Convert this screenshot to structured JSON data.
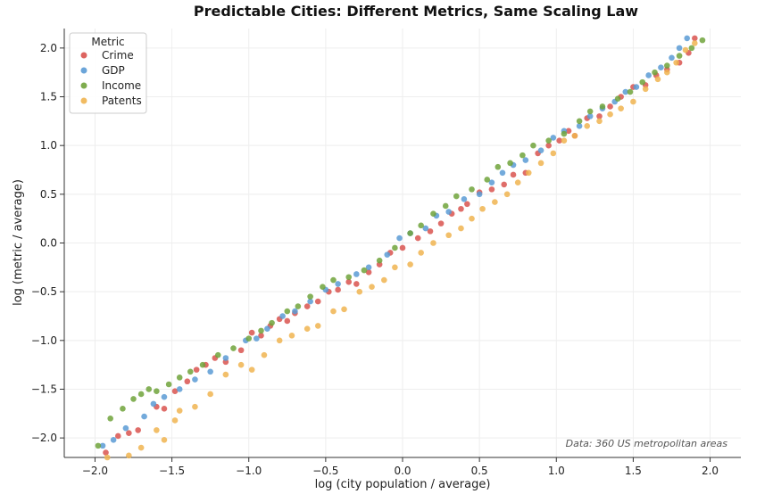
{
  "chart_data": {
    "type": "scatter",
    "title": "Predictable Cities: Different Metrics, Same Scaling Law",
    "xlabel": "log (city population / average)",
    "ylabel": "log (metric / average)",
    "xlim": [
      -2.2,
      2.2
    ],
    "ylim": [
      -2.2,
      2.2
    ],
    "x_ticks": [
      -2.0,
      -1.5,
      -1.0,
      -0.5,
      0.0,
      0.5,
      1.0,
      1.5,
      2.0
    ],
    "y_ticks": [
      -2.0,
      -1.5,
      -1.0,
      -0.5,
      0.0,
      0.5,
      1.0,
      1.5,
      2.0
    ],
    "x_tick_labels": [
      "−2.0",
      "−1.5",
      "−1.0",
      "−0.5",
      "0.0",
      "0.5",
      "1.0",
      "1.5",
      "2.0"
    ],
    "y_tick_labels": [
      "−2.0",
      "−1.5",
      "−1.0",
      "−0.5",
      "0.0",
      "0.5",
      "1.0",
      "1.5",
      "2.0"
    ],
    "grid": true,
    "legend_title": "Metric",
    "legend_position": "top-left",
    "annotation": "Data: 360 US metropolitan areas",
    "series": [
      {
        "name": "Crime",
        "color": "#d9534f",
        "points": [
          [
            -1.93,
            -2.15
          ],
          [
            -1.85,
            -1.98
          ],
          [
            -1.78,
            -1.95
          ],
          [
            -1.72,
            -1.92
          ],
          [
            -1.6,
            -1.68
          ],
          [
            -1.55,
            -1.7
          ],
          [
            -1.48,
            -1.52
          ],
          [
            -1.4,
            -1.42
          ],
          [
            -1.34,
            -1.3
          ],
          [
            -1.28,
            -1.25
          ],
          [
            -1.22,
            -1.18
          ],
          [
            -1.15,
            -1.22
          ],
          [
            -1.05,
            -1.1
          ],
          [
            -0.98,
            -0.92
          ],
          [
            -0.92,
            -0.95
          ],
          [
            -0.86,
            -0.85
          ],
          [
            -0.8,
            -0.78
          ],
          [
            -0.75,
            -0.8
          ],
          [
            -0.7,
            -0.72
          ],
          [
            -0.62,
            -0.65
          ],
          [
            -0.55,
            -0.6
          ],
          [
            -0.48,
            -0.5
          ],
          [
            -0.42,
            -0.48
          ],
          [
            -0.35,
            -0.4
          ],
          [
            -0.3,
            -0.42
          ],
          [
            -0.22,
            -0.3
          ],
          [
            -0.15,
            -0.22
          ],
          [
            -0.08,
            -0.1
          ],
          [
            0.0,
            -0.05
          ],
          [
            0.1,
            0.05
          ],
          [
            0.18,
            0.12
          ],
          [
            0.25,
            0.2
          ],
          [
            0.32,
            0.3
          ],
          [
            0.38,
            0.35
          ],
          [
            0.42,
            0.4
          ],
          [
            0.5,
            0.52
          ],
          [
            0.58,
            0.55
          ],
          [
            0.66,
            0.6
          ],
          [
            0.72,
            0.7
          ],
          [
            0.8,
            0.72
          ],
          [
            0.88,
            0.92
          ],
          [
            0.95,
            1.0
          ],
          [
            1.02,
            1.05
          ],
          [
            1.08,
            1.15
          ],
          [
            1.12,
            1.1
          ],
          [
            1.2,
            1.28
          ],
          [
            1.28,
            1.3
          ],
          [
            1.35,
            1.4
          ],
          [
            1.42,
            1.5
          ],
          [
            1.5,
            1.6
          ],
          [
            1.58,
            1.62
          ],
          [
            1.65,
            1.72
          ],
          [
            1.72,
            1.78
          ],
          [
            1.8,
            1.85
          ],
          [
            1.86,
            1.95
          ],
          [
            1.9,
            2.1
          ]
        ]
      },
      {
        "name": "GDP",
        "color": "#5b9bd5",
        "points": [
          [
            -1.95,
            -2.08
          ],
          [
            -1.88,
            -2.02
          ],
          [
            -1.8,
            -1.9
          ],
          [
            -1.68,
            -1.78
          ],
          [
            -1.62,
            -1.65
          ],
          [
            -1.55,
            -1.58
          ],
          [
            -1.45,
            -1.5
          ],
          [
            -1.35,
            -1.4
          ],
          [
            -1.25,
            -1.32
          ],
          [
            -1.15,
            -1.18
          ],
          [
            -1.02,
            -1.0
          ],
          [
            -0.95,
            -0.98
          ],
          [
            -0.88,
            -0.88
          ],
          [
            -0.78,
            -0.75
          ],
          [
            -0.7,
            -0.7
          ],
          [
            -0.6,
            -0.6
          ],
          [
            -0.5,
            -0.48
          ],
          [
            -0.42,
            -0.42
          ],
          [
            -0.3,
            -0.32
          ],
          [
            -0.22,
            -0.25
          ],
          [
            -0.1,
            -0.12
          ],
          [
            -0.02,
            0.05
          ],
          [
            0.05,
            0.1
          ],
          [
            0.15,
            0.15
          ],
          [
            0.22,
            0.28
          ],
          [
            0.3,
            0.32
          ],
          [
            0.4,
            0.45
          ],
          [
            0.5,
            0.5
          ],
          [
            0.58,
            0.62
          ],
          [
            0.65,
            0.72
          ],
          [
            0.72,
            0.8
          ],
          [
            0.8,
            0.85
          ],
          [
            0.9,
            0.95
          ],
          [
            0.98,
            1.08
          ],
          [
            1.05,
            1.15
          ],
          [
            1.15,
            1.2
          ],
          [
            1.22,
            1.3
          ],
          [
            1.3,
            1.38
          ],
          [
            1.38,
            1.45
          ],
          [
            1.45,
            1.55
          ],
          [
            1.52,
            1.6
          ],
          [
            1.6,
            1.72
          ],
          [
            1.68,
            1.8
          ],
          [
            1.75,
            1.9
          ],
          [
            1.8,
            2.0
          ],
          [
            1.85,
            2.1
          ]
        ]
      },
      {
        "name": "Income",
        "color": "#70a33b",
        "points": [
          [
            -1.98,
            -2.08
          ],
          [
            -1.9,
            -1.8
          ],
          [
            -1.82,
            -1.7
          ],
          [
            -1.75,
            -1.6
          ],
          [
            -1.7,
            -1.55
          ],
          [
            -1.65,
            -1.5
          ],
          [
            -1.6,
            -1.52
          ],
          [
            -1.52,
            -1.45
          ],
          [
            -1.45,
            -1.38
          ],
          [
            -1.38,
            -1.32
          ],
          [
            -1.3,
            -1.25
          ],
          [
            -1.2,
            -1.15
          ],
          [
            -1.1,
            -1.08
          ],
          [
            -1.0,
            -0.98
          ],
          [
            -0.92,
            -0.9
          ],
          [
            -0.85,
            -0.82
          ],
          [
            -0.75,
            -0.7
          ],
          [
            -0.68,
            -0.65
          ],
          [
            -0.6,
            -0.55
          ],
          [
            -0.52,
            -0.45
          ],
          [
            -0.45,
            -0.38
          ],
          [
            -0.35,
            -0.35
          ],
          [
            -0.25,
            -0.28
          ],
          [
            -0.15,
            -0.18
          ],
          [
            -0.05,
            -0.05
          ],
          [
            0.05,
            0.1
          ],
          [
            0.12,
            0.18
          ],
          [
            0.2,
            0.3
          ],
          [
            0.28,
            0.38
          ],
          [
            0.35,
            0.48
          ],
          [
            0.45,
            0.55
          ],
          [
            0.55,
            0.65
          ],
          [
            0.62,
            0.78
          ],
          [
            0.7,
            0.82
          ],
          [
            0.78,
            0.9
          ],
          [
            0.85,
            1.0
          ],
          [
            0.95,
            1.05
          ],
          [
            1.05,
            1.12
          ],
          [
            1.15,
            1.25
          ],
          [
            1.22,
            1.35
          ],
          [
            1.3,
            1.4
          ],
          [
            1.4,
            1.48
          ],
          [
            1.48,
            1.55
          ],
          [
            1.56,
            1.65
          ],
          [
            1.64,
            1.75
          ],
          [
            1.72,
            1.82
          ],
          [
            1.8,
            1.92
          ],
          [
            1.88,
            2.0
          ],
          [
            1.95,
            2.08
          ]
        ]
      },
      {
        "name": "Patents",
        "color": "#f0b450",
        "points": [
          [
            -1.92,
            -2.2
          ],
          [
            -1.78,
            -2.18
          ],
          [
            -1.7,
            -2.1
          ],
          [
            -1.6,
            -1.92
          ],
          [
            -1.55,
            -2.02
          ],
          [
            -1.48,
            -1.82
          ],
          [
            -1.45,
            -1.72
          ],
          [
            -1.35,
            -1.68
          ],
          [
            -1.25,
            -1.55
          ],
          [
            -1.15,
            -1.35
          ],
          [
            -1.05,
            -1.25
          ],
          [
            -0.98,
            -1.3
          ],
          [
            -0.9,
            -1.15
          ],
          [
            -0.8,
            -1.0
          ],
          [
            -0.72,
            -0.95
          ],
          [
            -0.62,
            -0.88
          ],
          [
            -0.55,
            -0.85
          ],
          [
            -0.45,
            -0.7
          ],
          [
            -0.38,
            -0.68
          ],
          [
            -0.28,
            -0.5
          ],
          [
            -0.2,
            -0.45
          ],
          [
            -0.12,
            -0.38
          ],
          [
            -0.05,
            -0.25
          ],
          [
            0.05,
            -0.22
          ],
          [
            0.12,
            -0.1
          ],
          [
            0.2,
            0.0
          ],
          [
            0.3,
            0.08
          ],
          [
            0.38,
            0.15
          ],
          [
            0.45,
            0.25
          ],
          [
            0.52,
            0.35
          ],
          [
            0.6,
            0.42
          ],
          [
            0.68,
            0.5
          ],
          [
            0.75,
            0.62
          ],
          [
            0.82,
            0.72
          ],
          [
            0.9,
            0.82
          ],
          [
            0.98,
            0.92
          ],
          [
            1.05,
            1.05
          ],
          [
            1.12,
            1.1
          ],
          [
            1.2,
            1.2
          ],
          [
            1.28,
            1.25
          ],
          [
            1.35,
            1.32
          ],
          [
            1.42,
            1.38
          ],
          [
            1.5,
            1.45
          ],
          [
            1.58,
            1.58
          ],
          [
            1.66,
            1.68
          ],
          [
            1.72,
            1.75
          ],
          [
            1.78,
            1.85
          ],
          [
            1.84,
            1.98
          ],
          [
            1.9,
            2.05
          ]
        ]
      }
    ]
  }
}
